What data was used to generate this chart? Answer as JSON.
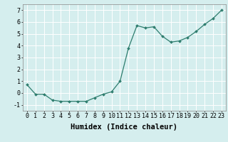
{
  "x": [
    0,
    1,
    2,
    3,
    4,
    5,
    6,
    7,
    8,
    9,
    10,
    11,
    12,
    13,
    14,
    15,
    16,
    17,
    18,
    19,
    20,
    21,
    22,
    23
  ],
  "y": [
    0.7,
    -0.1,
    -0.1,
    -0.6,
    -0.7,
    -0.7,
    -0.7,
    -0.7,
    -0.4,
    -0.1,
    0.1,
    1.0,
    3.8,
    5.7,
    5.5,
    5.6,
    4.8,
    4.3,
    4.4,
    4.7,
    5.2,
    5.8,
    6.3,
    7.0
  ],
  "line_color": "#2e7d6e",
  "marker": "D",
  "marker_size": 2.0,
  "xlabel": "Humidex (Indice chaleur)",
  "xlim": [
    -0.5,
    23.5
  ],
  "ylim": [
    -1.5,
    7.5
  ],
  "yticks": [
    -1,
    0,
    1,
    2,
    3,
    4,
    5,
    6,
    7
  ],
  "xticks": [
    0,
    1,
    2,
    3,
    4,
    5,
    6,
    7,
    8,
    9,
    10,
    11,
    12,
    13,
    14,
    15,
    16,
    17,
    18,
    19,
    20,
    21,
    22,
    23
  ],
  "xtick_labels": [
    "0",
    "1",
    "2",
    "3",
    "4",
    "5",
    "6",
    "7",
    "8",
    "9",
    "10",
    "11",
    "12",
    "13",
    "14",
    "15",
    "16",
    "17",
    "18",
    "19",
    "20",
    "21",
    "22",
    "23"
  ],
  "bg_color": "#d5eeee",
  "grid_color": "#ffffff",
  "xlabel_fontsize": 7.5,
  "tick_fontsize": 6.0,
  "line_width": 0.9
}
